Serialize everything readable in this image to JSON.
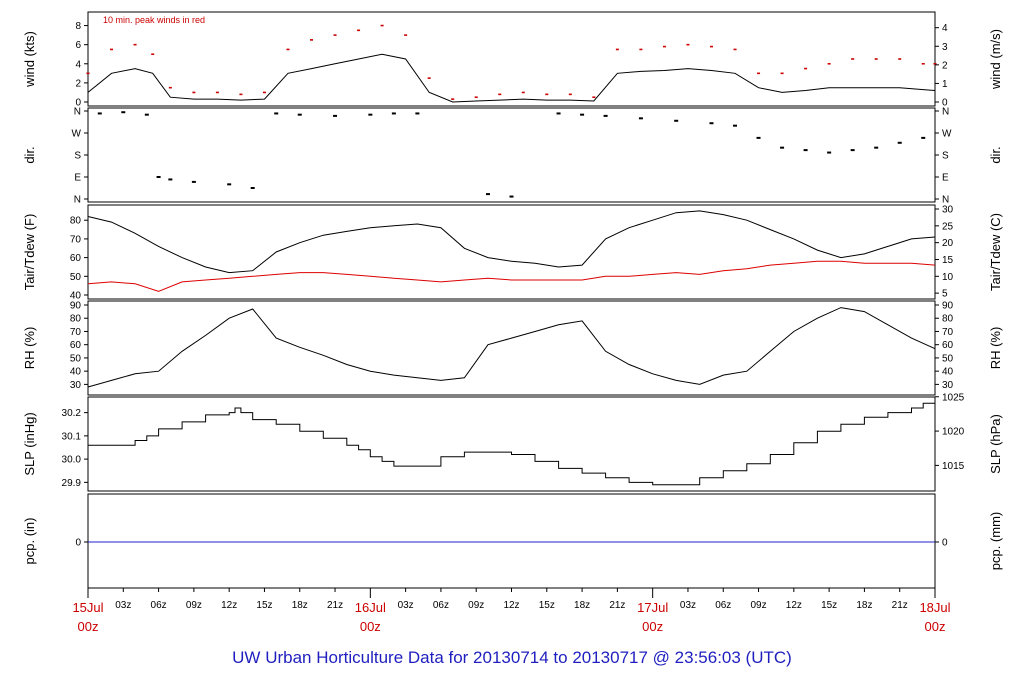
{
  "chart_data": [
    {
      "type": "line",
      "ylabel_left": "wind (kts)",
      "ylabel_right": "wind (m/s)",
      "ylim": [
        0,
        9
      ],
      "yticks_left": [
        0,
        2,
        4,
        6,
        8
      ],
      "yticks_right": [
        0,
        1,
        2,
        3,
        4
      ],
      "annotation": "10 min. peak winds in red",
      "series": [
        {
          "color": "#000000",
          "x": [
            0,
            2,
            4,
            5.5,
            7,
            9,
            11,
            13,
            15,
            17,
            19,
            21,
            23,
            25,
            27,
            29,
            31,
            33,
            35,
            37,
            39,
            41,
            43,
            45,
            47,
            49,
            51,
            53,
            55,
            57,
            59,
            61,
            63,
            65,
            67,
            69,
            71,
            72
          ],
          "y": [
            1,
            3,
            3.5,
            3,
            0.5,
            0.3,
            0.3,
            0.2,
            0.3,
            3,
            3.5,
            4,
            4.5,
            5,
            4.5,
            1,
            0,
            0.1,
            0.2,
            0.3,
            0.2,
            0.2,
            0.1,
            3,
            3.2,
            3.3,
            3.5,
            3.3,
            3,
            1.5,
            1,
            1.2,
            1.5,
            1.5,
            1.5,
            1.5,
            1.3,
            1.2
          ]
        },
        {
          "color": "#cc0000",
          "x": [
            0,
            2,
            4,
            5.5,
            7,
            9,
            11,
            13,
            15,
            17,
            19,
            21,
            23,
            25,
            27,
            29,
            31,
            33,
            35,
            37,
            39,
            41,
            43,
            45,
            47,
            49,
            51,
            53,
            55,
            57,
            59,
            61,
            63,
            65,
            67,
            69,
            71,
            72
          ],
          "y": [
            3,
            5.5,
            6,
            5,
            1.5,
            1,
            1,
            0.8,
            1,
            5.5,
            6.5,
            7,
            7.5,
            8,
            7,
            2.5,
            0.3,
            0.5,
            0.8,
            1,
            0.8,
            0.8,
            0.5,
            5.5,
            5.5,
            5.8,
            6,
            5.8,
            5.5,
            3,
            3,
            3.5,
            4,
            4.5,
            4.5,
            4.5,
            4,
            4
          ]
        }
      ]
    },
    {
      "type": "scatter",
      "ylabel": "dir.",
      "yticks": [
        "N",
        "E",
        "S",
        "W",
        "N"
      ],
      "yticks_right": [
        "N",
        "E",
        "S",
        "W",
        "N"
      ],
      "points": [
        [
          1,
          350
        ],
        [
          3,
          355
        ],
        [
          5,
          345
        ],
        [
          6,
          90
        ],
        [
          7,
          80
        ],
        [
          9,
          70
        ],
        [
          12,
          60
        ],
        [
          14,
          45
        ],
        [
          16,
          350
        ],
        [
          18,
          345
        ],
        [
          21,
          340
        ],
        [
          24,
          345
        ],
        [
          26,
          350
        ],
        [
          28,
          350
        ],
        [
          34,
          20
        ],
        [
          36,
          10
        ],
        [
          40,
          350
        ],
        [
          42,
          345
        ],
        [
          44,
          340
        ],
        [
          47,
          330
        ],
        [
          50,
          320
        ],
        [
          53,
          310
        ],
        [
          55,
          300
        ],
        [
          57,
          250
        ],
        [
          59,
          210
        ],
        [
          61,
          200
        ],
        [
          63,
          190
        ],
        [
          65,
          200
        ],
        [
          67,
          210
        ],
        [
          69,
          230
        ],
        [
          71,
          250
        ]
      ]
    },
    {
      "type": "line",
      "ylabel_left": "Tair/Tdew (F)",
      "ylabel_right": "Tair/Tdew (C)",
      "ylim": [
        40,
        86
      ],
      "yticks_left": [
        40,
        50,
        60,
        70,
        80
      ],
      "yticks_right": [
        5,
        10,
        15,
        20,
        25,
        30
      ],
      "series": [
        {
          "color": "#000000",
          "x": [
            0,
            2,
            4,
            6,
            8,
            10,
            12,
            14,
            16,
            18,
            20,
            22,
            24,
            26,
            28,
            30,
            32,
            34,
            36,
            38,
            40,
            42,
            44,
            46,
            48,
            50,
            52,
            54,
            56,
            58,
            60,
            62,
            64,
            66,
            68,
            70,
            72
          ],
          "y": [
            82,
            79,
            73,
            66,
            60,
            55,
            52,
            53,
            63,
            68,
            72,
            74,
            76,
            77,
            78,
            76,
            65,
            60,
            58,
            57,
            55,
            56,
            70,
            76,
            80,
            84,
            85,
            83,
            80,
            75,
            70,
            64,
            60,
            62,
            66,
            70,
            71
          ]
        },
        {
          "color": "#dd0000",
          "x": [
            0,
            2,
            4,
            6,
            8,
            10,
            12,
            14,
            16,
            18,
            20,
            22,
            24,
            26,
            28,
            30,
            32,
            34,
            36,
            38,
            40,
            42,
            44,
            46,
            48,
            50,
            52,
            54,
            56,
            58,
            60,
            62,
            64,
            66,
            68,
            70,
            72
          ],
          "y": [
            46,
            47,
            46,
            42,
            47,
            48,
            49,
            50,
            51,
            52,
            52,
            51,
            50,
            49,
            48,
            47,
            48,
            49,
            48,
            48,
            48,
            48,
            50,
            50,
            51,
            52,
            51,
            53,
            54,
            56,
            57,
            58,
            58,
            57,
            57,
            57,
            56
          ]
        }
      ]
    },
    {
      "type": "line",
      "ylabel_left": "RH (%)",
      "ylabel_right": "RH (%)",
      "ylim": [
        25,
        90
      ],
      "yticks_left": [
        30,
        40,
        50,
        60,
        70,
        80,
        90
      ],
      "yticks_right": [
        30,
        40,
        50,
        60,
        70,
        80,
        90
      ],
      "series": [
        {
          "color": "#000000",
          "x": [
            0,
            2,
            4,
            6,
            8,
            10,
            12,
            14,
            16,
            18,
            20,
            22,
            24,
            26,
            28,
            30,
            32,
            34,
            36,
            38,
            40,
            42,
            44,
            46,
            48,
            50,
            52,
            54,
            56,
            58,
            60,
            62,
            64,
            66,
            68,
            70,
            72
          ],
          "y": [
            28,
            33,
            38,
            40,
            55,
            67,
            80,
            87,
            65,
            58,
            52,
            45,
            40,
            37,
            35,
            33,
            35,
            60,
            65,
            70,
            75,
            78,
            55,
            45,
            38,
            33,
            30,
            37,
            40,
            55,
            70,
            80,
            88,
            85,
            75,
            65,
            57
          ]
        }
      ]
    },
    {
      "type": "line",
      "ylabel_left": "SLP (inHg)",
      "ylabel_right": "SLP (hPa)",
      "ylim": [
        29.88,
        30.25
      ],
      "yticks_left": [
        "29.9",
        "30.0",
        "30.1",
        "30.2"
      ],
      "yticks_right": [
        1015,
        1020,
        1025
      ],
      "series": [
        {
          "color": "#000000",
          "x": [
            0,
            3,
            4,
            5,
            6,
            8,
            10,
            12,
            12.5,
            13,
            14,
            16,
            18,
            20,
            22,
            23,
            24,
            25,
            26,
            28,
            30,
            32,
            34,
            36,
            38,
            40,
            42,
            44,
            46,
            48,
            50,
            52,
            54,
            56,
            58,
            60,
            62,
            64,
            66,
            68,
            70,
            71,
            72
          ],
          "y": [
            30.06,
            30.06,
            30.08,
            30.1,
            30.13,
            30.16,
            30.19,
            30.2,
            30.22,
            30.2,
            30.17,
            30.15,
            30.12,
            30.09,
            30.06,
            30.04,
            30.01,
            29.99,
            29.97,
            29.97,
            30.01,
            30.03,
            30.03,
            30.02,
            29.99,
            29.96,
            29.94,
            29.92,
            29.9,
            29.89,
            29.89,
            29.92,
            29.95,
            29.98,
            30.02,
            30.07,
            30.12,
            30.15,
            30.18,
            30.2,
            30.22,
            30.24,
            30.23
          ]
        }
      ]
    },
    {
      "type": "line",
      "ylabel_left": "pcp. (in)",
      "ylabel_right": "pcp. (mm)",
      "yticks_left": [
        0
      ],
      "yticks_right": [
        0
      ],
      "series": [
        {
          "color": "#2222cc",
          "x": [
            0,
            72
          ],
          "y": [
            0,
            0
          ]
        }
      ]
    }
  ],
  "x_axis": {
    "hour_labels": [
      "03z",
      "06z",
      "09z",
      "12z",
      "15z",
      "18z",
      "21z",
      "03z",
      "06z",
      "09z",
      "12z",
      "15z",
      "18z",
      "21z",
      "03z",
      "06z",
      "09z",
      "12z",
      "15z",
      "18z",
      "21z"
    ],
    "day_labels": [
      {
        "date": "15Jul",
        "time": "00z"
      },
      {
        "date": "16Jul",
        "time": "00z"
      },
      {
        "date": "17Jul",
        "time": "00z"
      },
      {
        "date": "18Jul",
        "time": "00z"
      }
    ]
  },
  "footer": "UW Urban Horticulture Data for 20130714  to  20130717 @ 23:56:03  (UTC)",
  "colors": {
    "air": "#000000",
    "dew": "#dd0000",
    "peak": "#cc0000",
    "pcp": "#2222cc",
    "day_label": "#cc0000",
    "footer": "#1f1fbf"
  }
}
